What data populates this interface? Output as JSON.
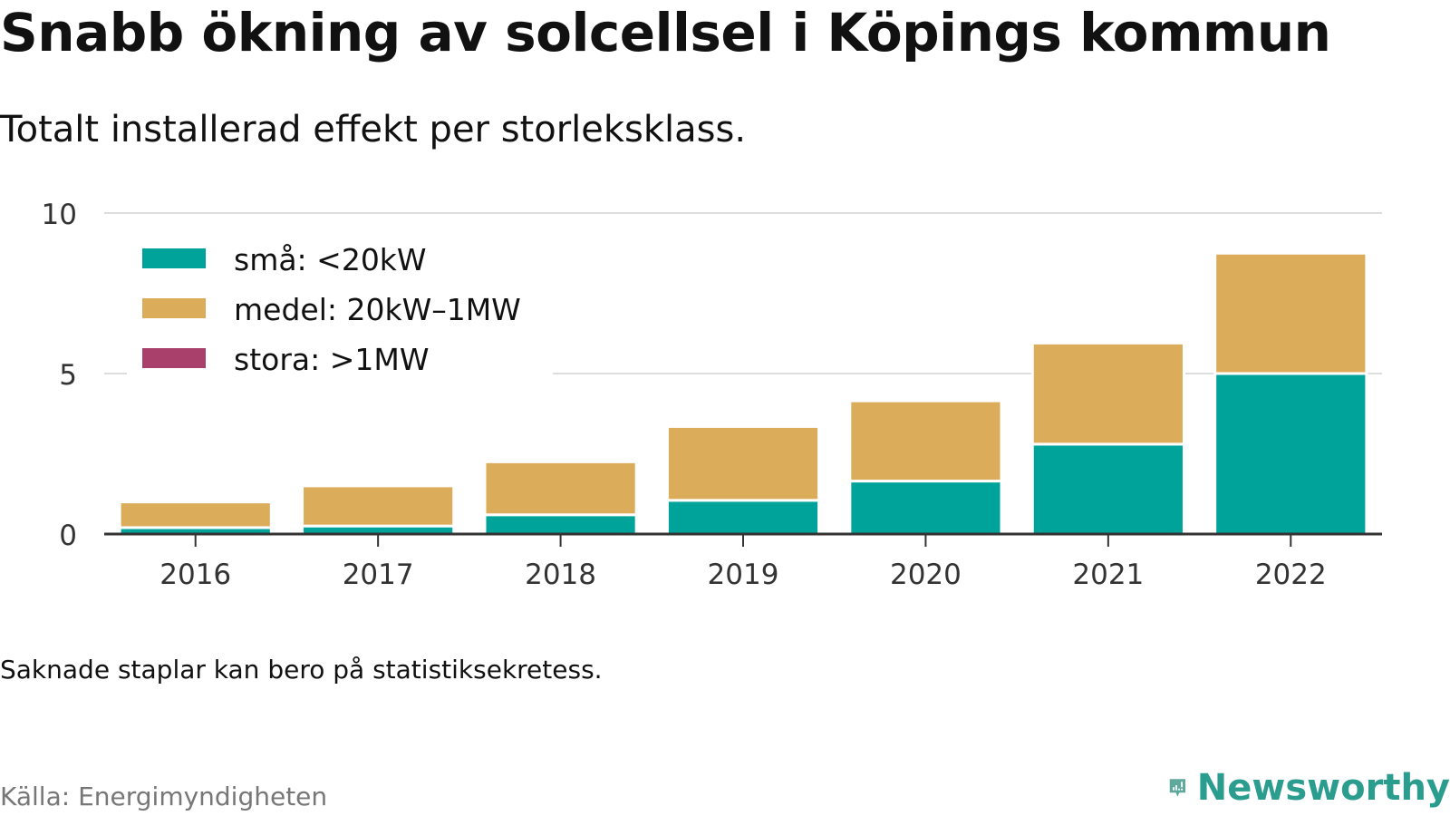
{
  "title": "Snabb ökning av solcellsel i Köpings kommun",
  "subtitle": "Totalt installerad effekt per storleksklass.",
  "note": "Saknade staplar kan bero på statistiksekretess.",
  "source": "Källa: Energimyndigheten",
  "brand": {
    "name": "Newsworthy",
    "icon": "newsworthy-logo-icon",
    "color": "#2a9d8f"
  },
  "chart_data": {
    "type": "bar",
    "stacked": true,
    "categories": [
      "2016",
      "2017",
      "2018",
      "2019",
      "2020",
      "2021",
      "2022"
    ],
    "series": [
      {
        "name": "små: <20kW",
        "color": "#00a39a",
        "values": [
          0.2,
          0.25,
          0.6,
          1.05,
          1.65,
          2.8,
          5.0
        ]
      },
      {
        "name": "medel: 20kW–1MW",
        "color": "#dbac5a",
        "values": [
          0.8,
          1.25,
          1.65,
          2.3,
          2.5,
          3.15,
          3.75
        ]
      },
      {
        "name": "stora: >1MW",
        "color": "#a8406b",
        "values": [
          0,
          0,
          0,
          0,
          0,
          0,
          0
        ]
      }
    ],
    "ylim": [
      0,
      10
    ],
    "yticks": [
      0,
      5,
      10
    ],
    "xlabel": "",
    "ylabel": "",
    "grid": true,
    "legend_position": "top-left"
  }
}
